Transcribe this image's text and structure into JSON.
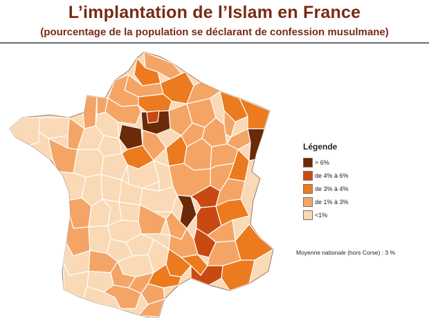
{
  "title": "L’implantation de l’Islam en France",
  "subtitle": "(pourcentage de la population se déclarant de confession musulmane)",
  "legend": {
    "title": "Légende",
    "items": [
      {
        "label": "> 6%",
        "color": "#6b2a08"
      },
      {
        "label": "de 4% à 6%",
        "color": "#c84a12"
      },
      {
        "label": "de 3% à 4%",
        "color": "#ec7a1e"
      },
      {
        "label": "de 1% à 3%",
        "color": "#f4a566"
      },
      {
        "label": "<1%",
        "color": "#f9d9b6"
      }
    ]
  },
  "note": "Moyenne nationale (hors Corse) : 3 %",
  "colors": {
    "title": "#7a2a12",
    "background": "#ffffff",
    "border": "#ffffff"
  }
}
